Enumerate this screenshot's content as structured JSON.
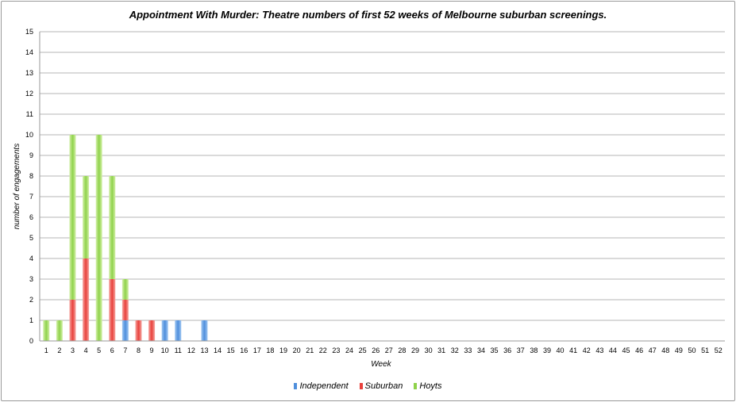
{
  "chart_data": {
    "type": "bar",
    "stacked": true,
    "title": "Appointment With Murder: Theatre numbers of first 52 weeks of Melbourne suburban screenings.",
    "xlabel": "Week",
    "ylabel": "number of engagements",
    "ylim": [
      0,
      15
    ],
    "yticks": [
      "0",
      "1",
      "2",
      "3",
      "4",
      "5",
      "6",
      "7",
      "8",
      "9",
      "10",
      "11",
      "12",
      "13",
      "14",
      "15"
    ],
    "grid": true,
    "legend_position": "bottom",
    "categories": [
      "1",
      "2",
      "3",
      "4",
      "5",
      "6",
      "7",
      "8",
      "9",
      "10",
      "11",
      "12",
      "13",
      "14",
      "15",
      "16",
      "17",
      "18",
      "19",
      "20",
      "21",
      "22",
      "23",
      "24",
      "25",
      "26",
      "27",
      "28",
      "29",
      "30",
      "31",
      "32",
      "33",
      "34",
      "35",
      "36",
      "37",
      "38",
      "39",
      "40",
      "41",
      "42",
      "43",
      "44",
      "45",
      "46",
      "47",
      "48",
      "49",
      "50",
      "51",
      "52"
    ],
    "series": [
      {
        "name": "Independent",
        "color": "#4f8fdc",
        "values": [
          0,
          0,
          0,
          0,
          0,
          0,
          1,
          0,
          0,
          1,
          1,
          0,
          1,
          0,
          0,
          0,
          0,
          0,
          0,
          0,
          0,
          0,
          0,
          0,
          0,
          0,
          0,
          0,
          0,
          0,
          0,
          0,
          0,
          0,
          0,
          0,
          0,
          0,
          0,
          0,
          0,
          0,
          0,
          0,
          0,
          0,
          0,
          0,
          0,
          0,
          0,
          0
        ]
      },
      {
        "name": "Suburban",
        "color": "#e8413c",
        "values": [
          0,
          0,
          2,
          4,
          0,
          3,
          1,
          1,
          1,
          0,
          0,
          0,
          0,
          0,
          0,
          0,
          0,
          0,
          0,
          0,
          0,
          0,
          0,
          0,
          0,
          0,
          0,
          0,
          0,
          0,
          0,
          0,
          0,
          0,
          0,
          0,
          0,
          0,
          0,
          0,
          0,
          0,
          0,
          0,
          0,
          0,
          0,
          0,
          0,
          0,
          0,
          0
        ]
      },
      {
        "name": "Hoyts",
        "color": "#8fd24b",
        "values": [
          1,
          1,
          8,
          4,
          10,
          5,
          1,
          0,
          0,
          0,
          0,
          0,
          0,
          0,
          0,
          0,
          0,
          0,
          0,
          0,
          0,
          0,
          0,
          0,
          0,
          0,
          0,
          0,
          0,
          0,
          0,
          0,
          0,
          0,
          0,
          0,
          0,
          0,
          0,
          0,
          0,
          0,
          0,
          0,
          0,
          0,
          0,
          0,
          0,
          0,
          0,
          0
        ]
      }
    ]
  }
}
